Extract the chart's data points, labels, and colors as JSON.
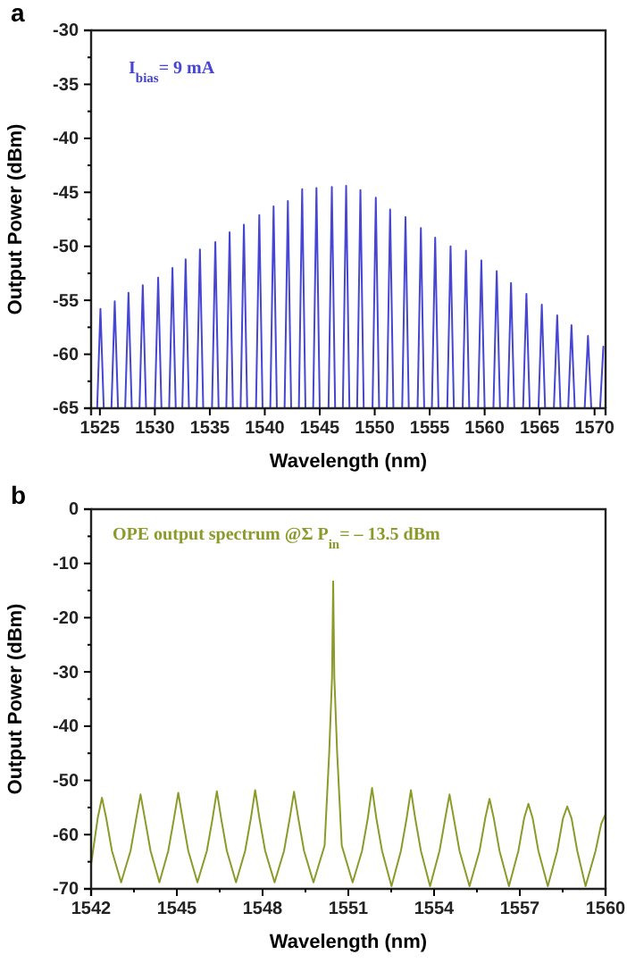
{
  "chart_data": [
    {
      "type": "line",
      "title": "a",
      "xlabel": "Wavelength (nm)",
      "ylabel": "Output Power (dBm)",
      "annotations": [
        "I$_{bias}$= 9 mA"
      ],
      "xlim": [
        1524.2,
        1571
      ],
      "ylim": [
        -65,
        -30
      ],
      "xticks": [
        1525,
        1530,
        1535,
        1540,
        1545,
        1550,
        1555,
        1560,
        1565,
        1570
      ],
      "yticks": [
        -65,
        {
          "value": -62.5,
          "label": null
        },
        -60,
        {
          "value": -57.5,
          "label": null
        },
        -55,
        {
          "value": -52.5,
          "label": null
        },
        -50,
        {
          "value": -47.5,
          "label": null
        },
        -45,
        {
          "value": -42.5,
          "label": null
        },
        -40,
        {
          "value": -37.5,
          "label": null
        },
        -35,
        {
          "value": -32.5,
          "label": null
        },
        -30
      ],
      "series": [
        {
          "color": "#4646d2",
          "x": [
            1524.75,
            1525.05,
            1525.35,
            1526.05,
            1526.35,
            1526.65,
            1527.3,
            1527.6,
            1527.9,
            1528.6,
            1528.9,
            1529.2,
            1530,
            1530.3,
            1530.6,
            1531.3,
            1531.6,
            1531.9,
            1532.5,
            1532.8,
            1533.1,
            1533.8,
            1534.1,
            1534.4,
            1535.2,
            1535.5,
            1535.8,
            1536.5,
            1536.8,
            1537.1,
            1537.8,
            1538.1,
            1538.4,
            1539.2,
            1539.5,
            1539.8,
            1540.5,
            1540.8,
            1541.1,
            1541.8,
            1542.1,
            1542.4,
            1543.1,
            1543.4,
            1543.7,
            1544.4,
            1544.7,
            1545,
            1545.8,
            1546.1,
            1546.4,
            1547.1,
            1547.4,
            1547.7,
            1548.4,
            1548.7,
            1549,
            1549.8,
            1550.1,
            1550.4,
            1551.1,
            1551.4,
            1551.7,
            1552.5,
            1552.8,
            1553.1,
            1553.9,
            1554.2,
            1554.5,
            1555.2,
            1555.5,
            1555.8,
            1556.6,
            1556.9,
            1557.2,
            1558,
            1558.3,
            1558.6,
            1559.4,
            1559.7,
            1560,
            1560.8,
            1561.1,
            1561.4,
            1562.1,
            1562.4,
            1562.7,
            1563.5,
            1563.8,
            1564.1,
            1564.9,
            1565.2,
            1565.5,
            1566.3,
            1566.6,
            1566.9,
            1567.6,
            1567.9,
            1568.2,
            1569.1,
            1569.4,
            1569.7,
            1570.5,
            1570.8
          ],
          "values": [
            -65,
            -55.8,
            -65,
            -65,
            -55.1,
            -65,
            -65,
            -54.3,
            -65,
            -65,
            -53.6,
            -65,
            -65,
            -52.9,
            -65,
            -65,
            -52,
            -65,
            -65,
            -51.2,
            -65,
            -65,
            -50.3,
            -65,
            -65,
            -49.6,
            -65,
            -65,
            -48.7,
            -65,
            -65,
            -48,
            -65,
            -65,
            -47.1,
            -65,
            -65,
            -46.3,
            -65,
            -65,
            -45.8,
            -65,
            -65,
            -44.7,
            -65,
            -65,
            -44.6,
            -65,
            -65,
            -44.5,
            -65,
            -65,
            -44.4,
            -65,
            -65,
            -44.8,
            -65,
            -65,
            -45.5,
            -65,
            -65,
            -46.6,
            -65,
            -65,
            -47.3,
            -65,
            -65,
            -48.3,
            -65,
            -65,
            -49.2,
            -65,
            -65,
            -50,
            -65,
            -65,
            -50.4,
            -65,
            -65,
            -51.3,
            -65,
            -65,
            -52.3,
            -65,
            -65,
            -53.4,
            -65,
            -65,
            -54.4,
            -65,
            -65,
            -55.4,
            -65,
            -65,
            -56.4,
            -65,
            -65,
            -57.3,
            -65,
            -65,
            -58.3,
            -65,
            -65,
            -59.3
          ]
        }
      ]
    },
    {
      "type": "line",
      "title": "b",
      "xlabel": "Wavelength (nm)",
      "ylabel": "Output Power (dBm)",
      "annotations": [
        "OPE output spectrum @Σ P$_{in}$= – 13.5 dBm"
      ],
      "xlim": [
        1542,
        1560
      ],
      "ylim": [
        -70,
        0
      ],
      "xticks": [
        1542,
        {
          "value": 1543.5,
          "label": null
        },
        1545,
        {
          "value": 1546.5,
          "label": null
        },
        1548,
        {
          "value": 1549.5,
          "label": null
        },
        1551,
        {
          "value": 1552.5,
          "label": null
        },
        1554,
        {
          "value": 1555.5,
          "label": null
        },
        1557,
        {
          "value": 1558.5,
          "label": null
        },
        1560
      ],
      "yticks": [
        -70,
        {
          "value": -65,
          "label": null
        },
        -60,
        {
          "value": -55,
          "label": null
        },
        -50,
        {
          "value": -45,
          "label": null
        },
        -40,
        {
          "value": -35,
          "label": null
        },
        -30,
        {
          "value": -25,
          "label": null
        },
        -20,
        {
          "value": -15,
          "label": null
        },
        -10,
        {
          "value": -5,
          "label": null
        },
        0
      ],
      "series": [
        {
          "color": "#8c9a2a",
          "x": [
            1542,
            1542.23,
            1542.38,
            1542.53,
            1542.73,
            1543.05,
            1543.38,
            1543.58,
            1543.73,
            1543.88,
            1544.08,
            1544.39,
            1544.7,
            1544.9,
            1545.05,
            1545.2,
            1545.4,
            1545.72,
            1546.05,
            1546.25,
            1546.4,
            1546.55,
            1546.75,
            1547.07,
            1547.39,
            1547.59,
            1547.74,
            1547.89,
            1548.09,
            1548.42,
            1548.75,
            1548.95,
            1549.1,
            1549.25,
            1549.45,
            1549.78,
            1550.17,
            1550.33,
            1550.43,
            1550.47,
            1550.51,
            1550.61,
            1550.77,
            1551.15,
            1551.48,
            1551.68,
            1551.83,
            1551.98,
            1552.18,
            1552.51,
            1552.84,
            1553.04,
            1553.19,
            1553.34,
            1553.54,
            1553.86,
            1554.19,
            1554.39,
            1554.54,
            1554.69,
            1554.89,
            1555.24,
            1555.59,
            1555.79,
            1555.94,
            1556.09,
            1556.29,
            1556.62,
            1556.95,
            1557.15,
            1557.3,
            1557.45,
            1557.65,
            1557.98,
            1558.31,
            1558.51,
            1558.66,
            1558.81,
            1559.01,
            1559.3,
            1559.65,
            1559.85,
            1560
          ],
          "values": [
            -65.5,
            -57,
            -53.2,
            -57,
            -63,
            -68.8,
            -63,
            -57,
            -52.6,
            -57,
            -63,
            -68.8,
            -63,
            -57,
            -52.3,
            -57,
            -63,
            -68.8,
            -63,
            -57,
            -52,
            -57,
            -63,
            -68.8,
            -63,
            -57,
            -51.8,
            -57,
            -63,
            -68.8,
            -63,
            -57,
            -52.1,
            -57,
            -63,
            -68.8,
            -62,
            -45,
            -31,
            -13.3,
            -31,
            -45,
            -62,
            -68.8,
            -63,
            -57,
            -51.4,
            -57,
            -63,
            -69.5,
            -63,
            -57,
            -51.8,
            -57,
            -63,
            -69.5,
            -63,
            -57,
            -52.6,
            -57,
            -63,
            -69.5,
            -63,
            -57,
            -53.4,
            -57,
            -63,
            -69.5,
            -63,
            -57,
            -54.3,
            -57,
            -63,
            -69.5,
            -63,
            -57,
            -54.8,
            -57,
            -63,
            -69.5,
            -63,
            -58,
            -56.2
          ]
        }
      ]
    }
  ]
}
